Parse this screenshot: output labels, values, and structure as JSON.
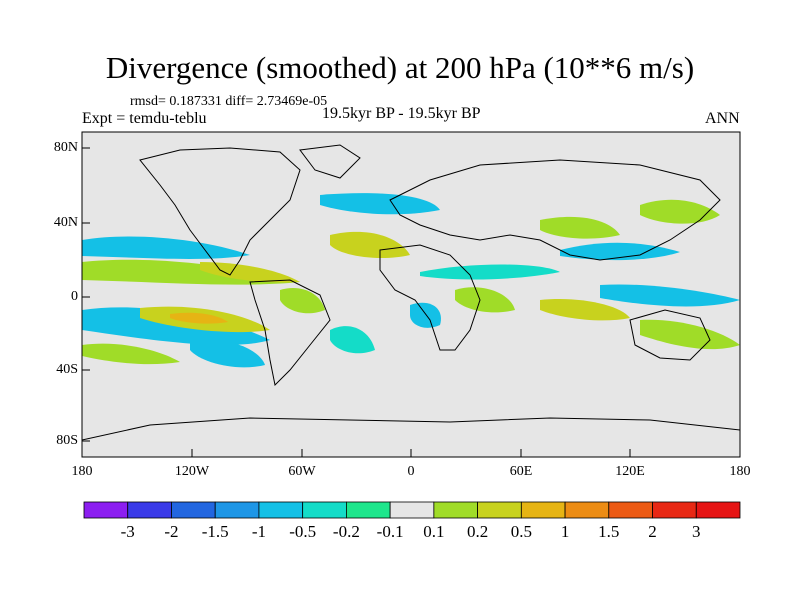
{
  "title": "Divergence (smoothed) at 200 hPa (10**6 m/s)",
  "stats": "rmsd= 0.187331 diff= 2.73469e-05",
  "experiment": "Expt = temdu-teblu",
  "period": "19.5kyr BP - 19.5kyr BP",
  "season": "ANN",
  "lat_labels": [
    "80N",
    "40N",
    "0",
    "40S",
    "80S"
  ],
  "lon_labels": [
    "180",
    "120W",
    "60W",
    "0",
    "60E",
    "120E",
    "180"
  ],
  "colorbar": {
    "labels": [
      "-3",
      "-2",
      "-1.5",
      "-1",
      "-0.5",
      "-0.2",
      "-0.1",
      "0.1",
      "0.2",
      "0.5",
      "1",
      "1.5",
      "2",
      "3"
    ],
    "colors": [
      "#8c1ef0",
      "#3a3ae8",
      "#2266e0",
      "#1e96e6",
      "#14c0e6",
      "#14dcc8",
      "#1ee68c",
      "#e6e6e6",
      "#a0dc28",
      "#c8d21e",
      "#e6b414",
      "#ec8c14",
      "#ec5a14",
      "#e82814",
      "#e61414"
    ]
  },
  "colors": {
    "background": "#e6e6e6",
    "coast": "#000000"
  }
}
